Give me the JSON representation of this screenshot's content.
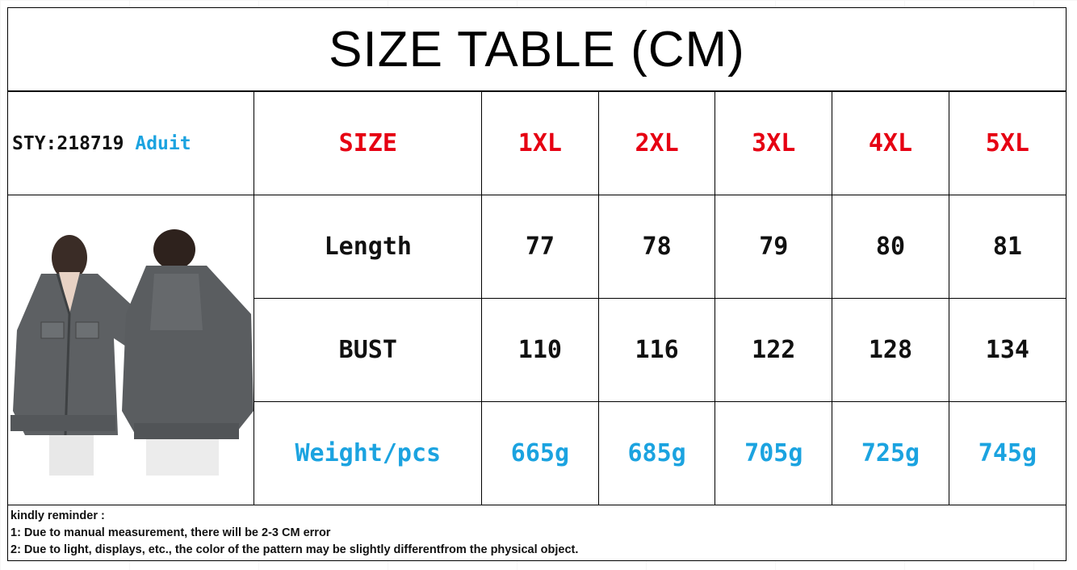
{
  "title": "SIZE TABLE (CM)",
  "style_label": "STY:218719",
  "style_tag": "Aduit",
  "product_image": "grey-denim-cape-sleeve-jacket-front-and-back",
  "table": {
    "header": {
      "label": "SIZE",
      "sizes": [
        "1XL",
        "2XL",
        "3XL",
        "4XL",
        "5XL"
      ]
    },
    "rows": [
      {
        "label": "Length",
        "values": [
          "77",
          "78",
          "79",
          "80",
          "81"
        ]
      },
      {
        "label": "BUST",
        "values": [
          "110",
          "116",
          "122",
          "128",
          "134"
        ]
      },
      {
        "label": "Weight/pcs",
        "values": [
          "665g",
          "685g",
          "705g",
          "725g",
          "745g"
        ]
      }
    ]
  },
  "reminder": {
    "heading": "kindly reminder :",
    "lines": [
      "1: Due to manual measurement, there will be 2-3 CM error",
      "2: Due to light, displays, etc., the color of the pattern may be slightly differentfrom the physical object."
    ]
  },
  "colors": {
    "size_header": "#e60012",
    "weight_row": "#1ba3e0",
    "style_tag": "#1ba3e0"
  }
}
